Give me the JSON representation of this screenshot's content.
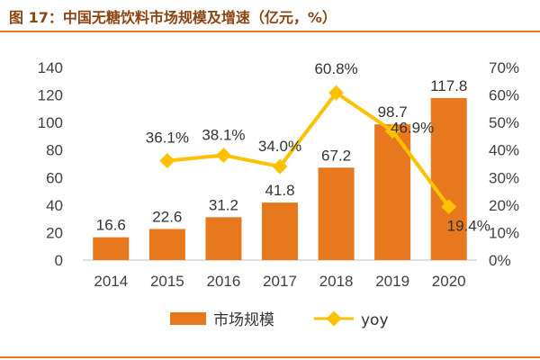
{
  "title": "图 17：中国无糖饮料市场规模及增速（亿元，%）",
  "colors": {
    "bar": "#E8781E",
    "line": "#FFC000",
    "rule": "#E8781E",
    "title": "#8B4513"
  },
  "legend": {
    "bar_label": "市场规模",
    "line_label": "yoy"
  },
  "chart_data": {
    "type": "bar",
    "categories": [
      "2014",
      "2015",
      "2016",
      "2017",
      "2018",
      "2019",
      "2020"
    ],
    "series": [
      {
        "name": "市场规模",
        "type": "bar",
        "axis": "left",
        "values": [
          16.6,
          22.6,
          31.2,
          41.8,
          67.2,
          98.7,
          117.8
        ],
        "labels": [
          "16.6",
          "22.6",
          "31.2",
          "41.8",
          "67.2",
          "98.7",
          "117.8"
        ]
      },
      {
        "name": "yoy",
        "type": "line",
        "axis": "right",
        "values": [
          null,
          36.1,
          38.1,
          34.0,
          60.8,
          46.9,
          19.4
        ],
        "labels": [
          "",
          "36.1%",
          "38.1%",
          "34.0%",
          "60.8%",
          "46.9%",
          "19.4%"
        ]
      }
    ],
    "ylim": [
      0,
      140
    ],
    "y_ticks": [
      "0",
      "20",
      "40",
      "60",
      "80",
      "100",
      "120",
      "140"
    ],
    "y2lim": [
      0,
      70
    ],
    "y2_ticks": [
      "0%",
      "10%",
      "20%",
      "30%",
      "40%",
      "50%",
      "60%",
      "70%"
    ],
    "legend_position": "bottom",
    "grid": false
  }
}
